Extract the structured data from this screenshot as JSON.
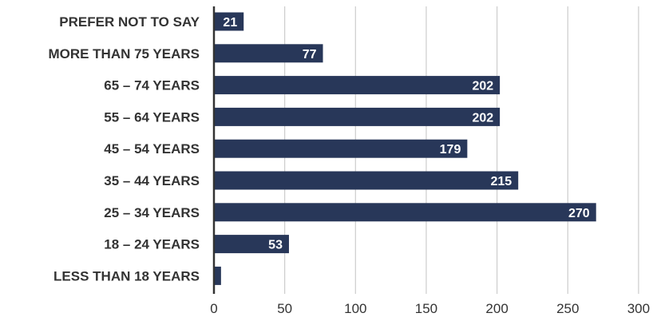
{
  "chart_data": {
    "type": "bar",
    "orientation": "horizontal",
    "title": "",
    "xlabel": "",
    "ylabel": "",
    "categories": [
      "PREFER NOT TO SAY",
      "MORE THAN 75 YEARS",
      "65 – 74 YEARS",
      "55 – 64 YEARS",
      "45 – 54 YEARS",
      "35 – 44 YEARS",
      "25 – 34 YEARS",
      "18 – 24 YEARS",
      "LESS THAN 18 YEARS"
    ],
    "values": [
      21,
      77,
      202,
      202,
      179,
      215,
      270,
      53,
      5
    ],
    "data_labels": [
      "21",
      "77",
      "202",
      "202",
      "179",
      "215",
      "270",
      "53",
      ""
    ],
    "xlim": [
      0,
      300
    ],
    "xticks": [
      0,
      50,
      100,
      150,
      200,
      250,
      300
    ],
    "xtick_labels": [
      "0",
      "50",
      "100",
      "150",
      "200",
      "250",
      "300"
    ],
    "grid": "vertical",
    "legend": "none",
    "colors": {
      "bar": "#283759",
      "bar_label": "#ffffff",
      "grid": "#cccccc",
      "axis": "#333333",
      "text": "#333333"
    }
  }
}
